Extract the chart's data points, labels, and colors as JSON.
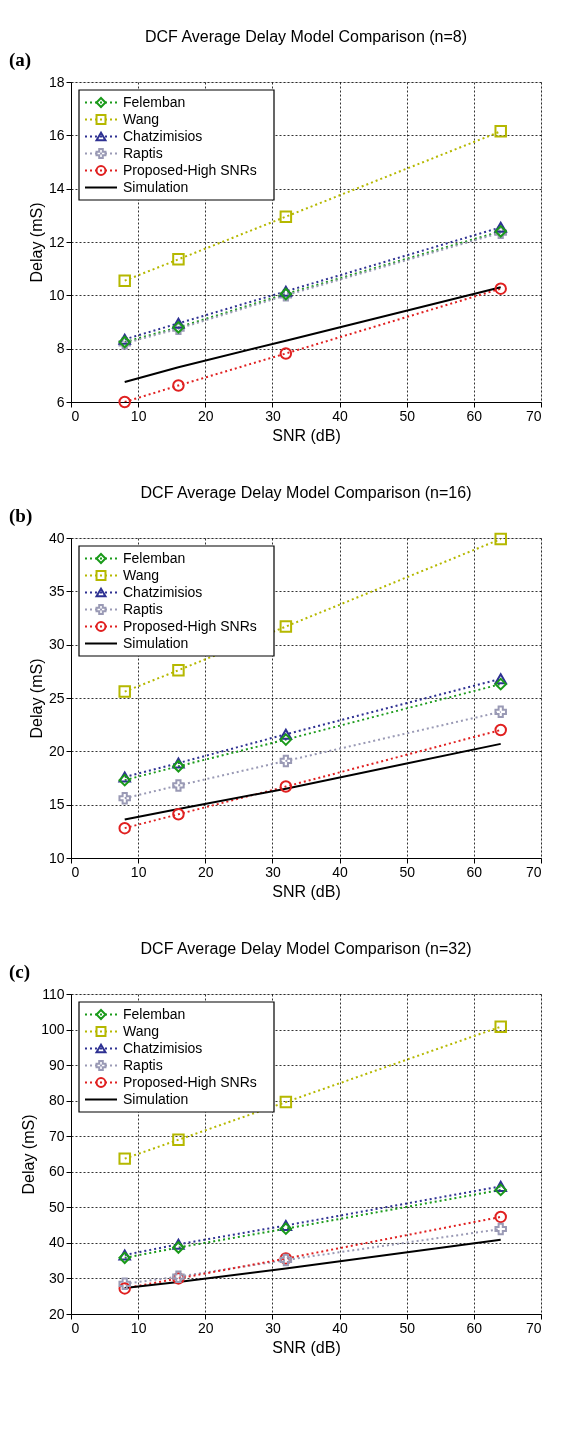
{
  "chart_data": [
    {
      "type": "line",
      "title": "DCF Average Delay Model Comparison (n=8)",
      "xlabel": "SNR (dB)",
      "ylabel": "Delay (mS)",
      "annotations": [
        "(a)"
      ],
      "x": [
        8,
        16,
        32,
        64
      ],
      "xlim": [
        0,
        70
      ],
      "xticks": [
        0,
        10,
        20,
        30,
        40,
        50,
        60,
        70
      ],
      "ylim": [
        6,
        18
      ],
      "yticks": [
        6,
        8,
        10,
        12,
        14,
        16,
        18
      ],
      "grid": true,
      "legend": "top left",
      "series": [
        {
          "name": "Felemban",
          "color": "#1a9a1a",
          "marker": "diamond",
          "line_style": "dotted",
          "values": [
            8.25,
            8.8,
            10.05,
            12.4
          ]
        },
        {
          "name": "Wang",
          "color": "#b5b800",
          "marker": "square",
          "line_style": "dotted",
          "values": [
            10.55,
            11.35,
            12.95,
            16.15
          ]
        },
        {
          "name": "Chatzimisios",
          "color": "#2e3192",
          "marker": "triangle",
          "line_style": "dotted",
          "values": [
            8.35,
            8.95,
            10.15,
            12.55
          ]
        },
        {
          "name": "Raptis",
          "color": "#9a9ab5",
          "marker": "cross",
          "line_style": "dotted",
          "values": [
            8.2,
            8.75,
            10.0,
            12.35
          ]
        },
        {
          "name": "Proposed-High SNRs",
          "color": "#e02020",
          "marker": "circle",
          "line_style": "dotted",
          "values": [
            6.0,
            6.62,
            7.82,
            10.25
          ]
        },
        {
          "name": "Simulation",
          "color": "#000000",
          "marker": "none",
          "line_style": "solid",
          "values": [
            6.75,
            7.3,
            8.3,
            10.3
          ]
        }
      ]
    },
    {
      "type": "line",
      "title": "DCF Average Delay Model Comparison (n=16)",
      "xlabel": "SNR (dB)",
      "ylabel": "Delay (mS)",
      "annotations": [
        "(b)"
      ],
      "x": [
        8,
        16,
        32,
        64
      ],
      "xlim": [
        0,
        70
      ],
      "xticks": [
        0,
        10,
        20,
        30,
        40,
        50,
        60,
        70
      ],
      "ylim": [
        10,
        40
      ],
      "yticks": [
        10,
        15,
        20,
        25,
        30,
        35,
        40
      ],
      "grid": true,
      "legend": "top left",
      "series": [
        {
          "name": "Felemban",
          "color": "#1a9a1a",
          "marker": "diamond",
          "line_style": "dotted",
          "values": [
            17.3,
            18.6,
            21.1,
            26.3
          ]
        },
        {
          "name": "Wang",
          "color": "#b5b800",
          "marker": "square",
          "line_style": "dotted",
          "values": [
            25.6,
            27.6,
            31.7,
            39.9
          ]
        },
        {
          "name": "Chatzimisios",
          "color": "#2e3192",
          "marker": "triangle",
          "line_style": "dotted",
          "values": [
            17.6,
            18.9,
            21.6,
            26.8
          ]
        },
        {
          "name": "Raptis",
          "color": "#9a9ab5",
          "marker": "cross",
          "line_style": "dotted",
          "values": [
            15.6,
            16.8,
            19.1,
            23.7
          ]
        },
        {
          "name": "Proposed-High SNRs",
          "color": "#e02020",
          "marker": "circle",
          "line_style": "dotted",
          "values": [
            12.8,
            14.1,
            16.7,
            22.0
          ]
        },
        {
          "name": "Simulation",
          "color": "#000000",
          "marker": "none",
          "line_style": "solid",
          "values": [
            13.6,
            14.6,
            16.5,
            20.7
          ]
        }
      ]
    },
    {
      "type": "line",
      "title": "DCF Average Delay Model Comparison (n=32)",
      "xlabel": "SNR (dB)",
      "ylabel": "Delay (mS)",
      "annotations": [
        "(c)"
      ],
      "x": [
        8,
        16,
        32,
        64
      ],
      "xlim": [
        0,
        70
      ],
      "xticks": [
        0,
        10,
        20,
        30,
        40,
        50,
        60,
        70
      ],
      "ylim": [
        20,
        110
      ],
      "yticks": [
        20,
        30,
        40,
        50,
        60,
        70,
        80,
        90,
        100,
        110
      ],
      "grid": true,
      "legend": "top left",
      "series": [
        {
          "name": "Felemban",
          "color": "#1a9a1a",
          "marker": "diamond",
          "line_style": "dotted",
          "values": [
            35.8,
            38.7,
            44.0,
            54.9
          ]
        },
        {
          "name": "Wang",
          "color": "#b5b800",
          "marker": "square",
          "line_style": "dotted",
          "values": [
            63.7,
            69.0,
            79.6,
            100.8
          ]
        },
        {
          "name": "Chatzimisios",
          "color": "#2e3192",
          "marker": "triangle",
          "line_style": "dotted",
          "values": [
            36.6,
            39.6,
            44.9,
            55.9
          ]
        },
        {
          "name": "Raptis",
          "color": "#9a9ab5",
          "marker": "cross",
          "line_style": "dotted",
          "values": [
            28.5,
            30.5,
            35.2,
            43.9
          ]
        },
        {
          "name": "Proposed-High SNRs",
          "color": "#e02020",
          "marker": "circle",
          "line_style": "dotted",
          "values": [
            27.2,
            30.0,
            35.6,
            47.3
          ]
        },
        {
          "name": "Simulation",
          "color": "#000000",
          "marker": "none",
          "line_style": "solid",
          "values": [
            27.3,
            29.0,
            32.8,
            40.9
          ]
        }
      ]
    }
  ]
}
